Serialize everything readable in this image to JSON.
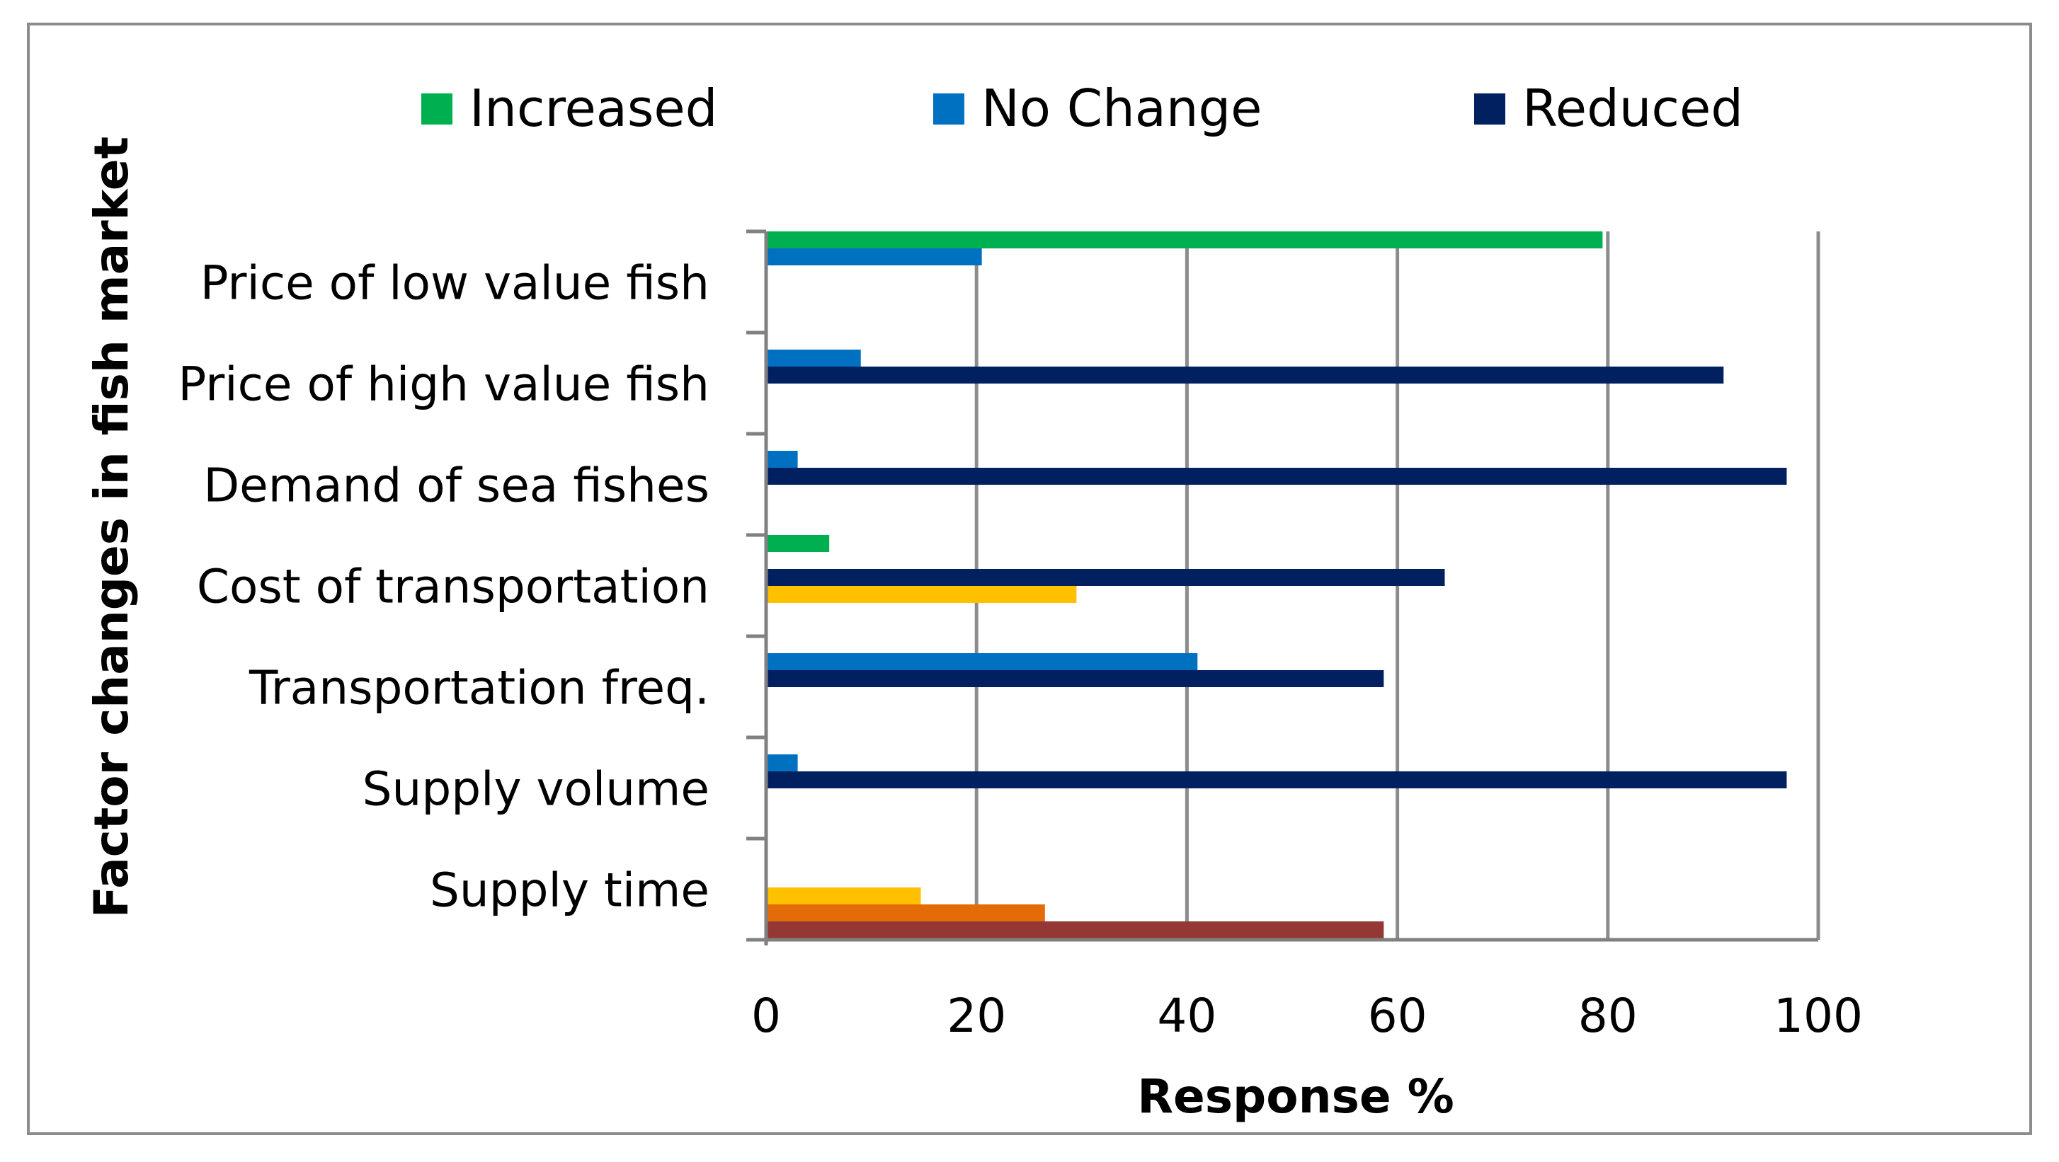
{
  "chart_data": {
    "type": "bar",
    "orientation": "horizontal",
    "xlabel": "Response %",
    "ylabel": "Factor changes in fish market",
    "xlim": [
      0,
      100
    ],
    "xticks": [
      "0",
      "20",
      "40",
      "60",
      "80",
      "100"
    ],
    "grid": "vertical",
    "legend_position": "top",
    "categories": [
      "Price of low value fish",
      "Price of high value fish",
      "Demand of sea fishes",
      "Cost of transportation",
      "Transportation freq.",
      "Supply volume",
      "Supply time"
    ],
    "series": [
      {
        "name": "Increased",
        "color": "#00B050",
        "values": [
          79.5,
          null,
          null,
          6,
          null,
          null,
          null
        ]
      },
      {
        "name": "No Change",
        "color": "#0070C0",
        "values": [
          20.5,
          9,
          3,
          null,
          41,
          3,
          null
        ]
      },
      {
        "name": "Reduced",
        "color": "#002060",
        "values": [
          null,
          91,
          97,
          64.5,
          58.7,
          97,
          null
        ]
      },
      {
        "color": "#FFC000",
        "values": [
          null,
          null,
          null,
          29.5,
          null,
          null,
          14.7
        ]
      },
      {
        "color": "#E36C09",
        "values": [
          null,
          null,
          null,
          null,
          null,
          null,
          26.5
        ]
      },
      {
        "color": "#953735",
        "values": [
          null,
          null,
          null,
          null,
          null,
          null,
          58.7
        ]
      }
    ]
  }
}
